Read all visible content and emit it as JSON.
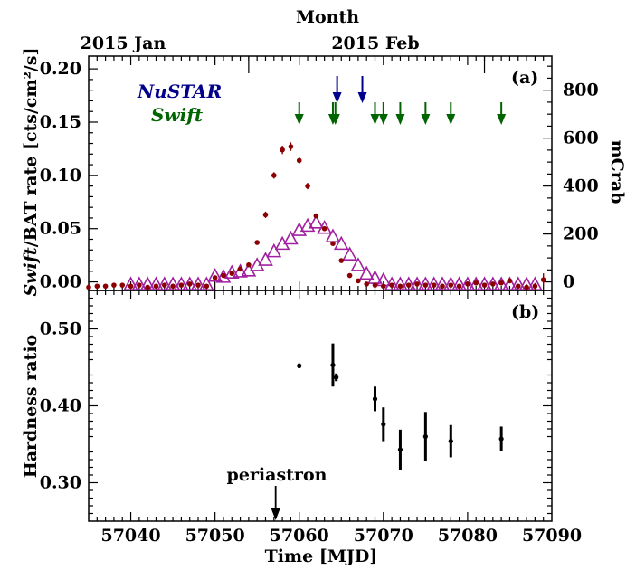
{
  "colors": {
    "bat": "#8b0000",
    "maxi": "#a020a0",
    "nustar": "#00008b",
    "swift": "#006400",
    "hardness": "#000000"
  },
  "labels": {
    "top_axis_title": "Month",
    "month_jan": "2015 Jan",
    "month_feb": "2015 Feb",
    "panel_a": "(a)",
    "panel_b": "(b)",
    "legend_nustar": "NuSTAR",
    "legend_swift": "Swift",
    "right_ylabel": "mCrab",
    "ylabel_a_italic": "Swift",
    "ylabel_a_rest": "/BAT rate [cts/cm²/s]",
    "ylabel_b": "Hardness ratio",
    "xlabel": "Time [MJD]",
    "periastron": "periastron"
  },
  "chart_data": [
    {
      "panel": "a",
      "type": "scatter",
      "xlim": [
        57035,
        57090
      ],
      "ylim": [
        -0.008,
        0.212
      ],
      "right_axis": {
        "label": "mCrab",
        "ticks": [
          0,
          200,
          400,
          600,
          800
        ]
      },
      "x_ticks": [
        57040,
        57050,
        57060,
        57070,
        57080,
        57090
      ],
      "y_ticks": [
        "0.00",
        "0.05",
        "0.10",
        "0.15",
        "0.20"
      ],
      "month_ticks": [
        57054,
        57082
      ],
      "series": [
        {
          "kind": "points",
          "x": [
            57035,
            57036,
            57037,
            57038,
            57039,
            57040,
            57041,
            57042,
            57043,
            57044,
            57045,
            57046,
            57047,
            57048,
            57049,
            57050,
            57051,
            57052,
            57053,
            57054,
            57055,
            57056,
            57057,
            57058,
            57059,
            57060,
            57061,
            57062,
            57063,
            57064,
            57065,
            57066,
            57067,
            57068,
            57069,
            57070,
            57071,
            57072,
            57073,
            57074,
            57075,
            57076,
            57077,
            57078,
            57079,
            57080,
            57081,
            57082,
            57083,
            57084,
            57085,
            57086,
            57087,
            57088,
            57089
          ],
          "y": [
            -0.005,
            -0.004,
            -0.004,
            -0.003,
            -0.003,
            -0.004,
            -0.003,
            -0.005,
            -0.004,
            -0.003,
            -0.004,
            -0.003,
            -0.002,
            -0.003,
            -0.004,
            0.004,
            0.006,
            0.008,
            0.012,
            0.016,
            0.037,
            0.063,
            0.1,
            0.124,
            0.127,
            0.114,
            0.09,
            0.062,
            0.05,
            0.036,
            0.02,
            0.006,
            0.001,
            -0.002,
            -0.003,
            -0.004,
            -0.003,
            -0.004,
            -0.003,
            -0.002,
            -0.003,
            -0.003,
            -0.004,
            -0.003,
            -0.004,
            -0.002,
            -0.001,
            -0.003,
            -0.002,
            -0.001,
            0.001,
            -0.004,
            -0.005,
            -0.004,
            0.002
          ],
          "yerr": [
            0.002,
            0.002,
            0.002,
            0.002,
            0.002,
            0.002,
            0.002,
            0.002,
            0.002,
            0.002,
            0.002,
            0.002,
            0.002,
            0.002,
            0.002,
            0.002,
            0.002,
            0.002,
            0.002,
            0.002,
            0.002,
            0.003,
            0.003,
            0.004,
            0.004,
            0.003,
            0.003,
            0.002,
            0.002,
            0.002,
            0.002,
            0.002,
            0.002,
            0.002,
            0.002,
            0.002,
            0.002,
            0.002,
            0.002,
            0.002,
            0.002,
            0.002,
            0.002,
            0.002,
            0.002,
            0.002,
            0.002,
            0.002,
            0.002,
            0.002,
            0.002,
            0.002,
            0.003,
            0.003,
            0.006
          ]
        },
        {
          "kind": "triangles",
          "x": [
            57040,
            57041,
            57042,
            57043,
            57044,
            57045,
            57046,
            57047,
            57048,
            57049,
            57050,
            57051,
            57052,
            57053,
            57054,
            57055,
            57056,
            57057,
            57058,
            57059,
            57060,
            57061,
            57062,
            57063,
            57064,
            57065,
            57066,
            57067,
            57068,
            57069,
            57070,
            57071,
            57072,
            57073,
            57074,
            57075,
            57076,
            57077,
            57078,
            57079,
            57080,
            57081,
            57082,
            57083,
            57084,
            57085,
            57086,
            57087,
            57088
          ],
          "y": [
            -0.003,
            -0.003,
            -0.003,
            -0.003,
            -0.003,
            -0.003,
            -0.003,
            -0.003,
            -0.003,
            -0.003,
            0.005,
            0.004,
            0.008,
            0.009,
            0.01,
            0.015,
            0.02,
            0.028,
            0.035,
            0.04,
            0.048,
            0.052,
            0.055,
            0.05,
            0.042,
            0.035,
            0.025,
            0.015,
            0.007,
            0.003,
            0.001,
            -0.003,
            -0.003,
            -0.003,
            -0.003,
            -0.003,
            -0.003,
            -0.003,
            -0.003,
            -0.003,
            -0.003,
            -0.003,
            -0.003,
            -0.003,
            -0.003,
            -0.003,
            -0.003,
            -0.003,
            -0.003
          ]
        }
      ],
      "arrows": [
        {
          "observatory": "NuSTAR",
          "x": [
            57064.5,
            57067.5
          ]
        },
        {
          "observatory": "Swift",
          "x": [
            57060,
            57064,
            57064.3,
            57069,
            57070,
            57072,
            57075,
            57078,
            57084
          ]
        }
      ]
    },
    {
      "panel": "b",
      "type": "scatter",
      "xlim": [
        57035,
        57090
      ],
      "ylim": [
        0.25,
        0.55
      ],
      "x_ticks": [
        57040,
        57050,
        57060,
        57070,
        57080,
        57090
      ],
      "y_ticks": [
        "0.30",
        "0.40",
        "0.50"
      ],
      "xlabel": "Time [MJD]",
      "ylabel": "Hardness ratio",
      "x": [
        57060,
        57064,
        57064.4,
        57069,
        57070,
        57072,
        57075,
        57078,
        57084
      ],
      "y": [
        0.452,
        0.453,
        0.437,
        0.409,
        0.376,
        0.343,
        0.36,
        0.354,
        0.357
      ],
      "yerr": [
        0.003,
        0.028,
        0.005,
        0.016,
        0.022,
        0.026,
        0.032,
        0.021,
        0.016
      ],
      "annotation": {
        "text": "periastron",
        "x": 57057.2
      }
    }
  ]
}
